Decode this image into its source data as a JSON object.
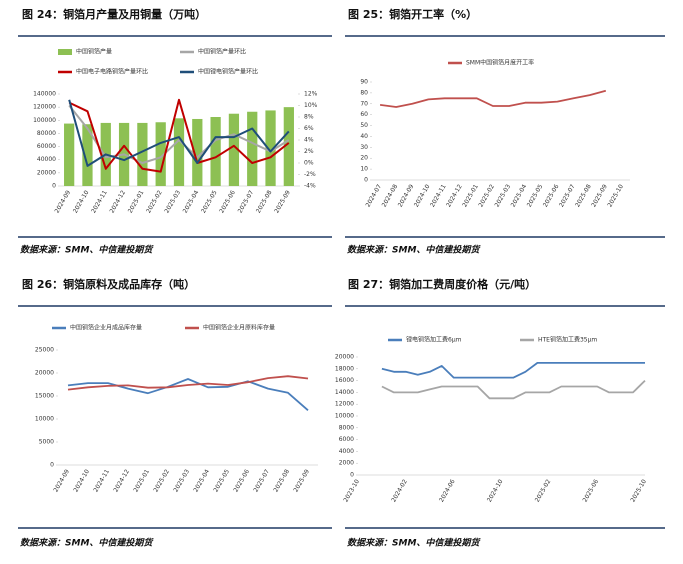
{
  "chart_data": [
    {
      "type": "bar",
      "title": "图 24：铜箔月产量及用铜量（万吨）",
      "source": "数据来源：SMM、中信建投期货",
      "categories": [
        "2024-09",
        "2024-10",
        "2024-11",
        "2024-12",
        "2025-01",
        "2025-02",
        "2025-03",
        "2025-04",
        "2025-05",
        "2025-06",
        "2025-07",
        "2025-08",
        "2025-09"
      ],
      "series": [
        {
          "name": "中国铜箔产量",
          "type": "bar",
          "color": "#8dc053",
          "values": [
            95000,
            94000,
            96000,
            96000,
            96000,
            97000,
            103000,
            102000,
            105000,
            110000,
            113000,
            115000,
            120000
          ]
        },
        {
          "name": "中国铜箔产量环比",
          "type": "line",
          "axis": "y2",
          "color": "#a6a6a6",
          "values": [
            10,
            6,
            1,
            1.5,
            0,
            1,
            4,
            1,
            4,
            5,
            3.5,
            2,
            4
          ]
        },
        {
          "name": "中国电子电路铜箔产量环比",
          "type": "line",
          "axis": "y2",
          "color": "#c00000",
          "values": [
            10.5,
            9,
            -1,
            3,
            -1,
            -1.5,
            11,
            0,
            1,
            3,
            0,
            1,
            3.5
          ]
        },
        {
          "name": "中国锂电铜箔产量环比",
          "type": "line",
          "axis": "y2",
          "color": "#1f4e79",
          "values": [
            11,
            -0.5,
            1.5,
            0.5,
            2,
            3.5,
            4.5,
            0,
            4.5,
            4.5,
            6,
            2,
            5.5
          ]
        }
      ],
      "ylim": [
        0,
        140000
      ],
      "yticks": [
        0,
        20000,
        40000,
        60000,
        80000,
        100000,
        120000,
        140000
      ],
      "y2lim": [
        -4,
        12
      ],
      "y2ticks": [
        {
          "value": -4,
          "label": "-4%"
        },
        {
          "value": -2,
          "label": "-2%"
        },
        {
          "value": 0,
          "label": "0%"
        },
        {
          "value": 2,
          "label": "2%"
        },
        {
          "value": 4,
          "label": "4%"
        },
        {
          "value": 6,
          "label": "6%"
        },
        {
          "value": 8,
          "label": "8%"
        },
        {
          "value": 10,
          "label": "10%"
        },
        {
          "value": 12,
          "label": "12%"
        }
      ]
    },
    {
      "type": "line",
      "title": "图 25：铜箔开工率（%）",
      "source": "数据来源：SMM、中信建投期货",
      "categories": [
        "2024-07",
        "2024-08",
        "2024-09",
        "2024-10",
        "2024-11",
        "2024-12",
        "2025-01",
        "2025-02",
        "2025-03",
        "2025-04",
        "2025-05",
        "2025-06",
        "2025-07",
        "2025-08",
        "2025-09",
        "2025-10"
      ],
      "series": [
        {
          "name": "SMM中国铜箔月度开工率",
          "color": "#c0504d",
          "values": [
            69,
            67,
            70,
            74,
            75,
            75,
            75,
            68,
            68,
            71,
            71,
            72,
            75,
            78,
            82,
            null
          ]
        }
      ],
      "ylim": [
        0,
        90
      ],
      "yticks": [
        0,
        10,
        20,
        30,
        40,
        50,
        60,
        70,
        80,
        90
      ]
    },
    {
      "type": "line",
      "title": "图 26：铜箔原料及成品库存（吨）",
      "source": "数据来源：SMM、中信建投期货",
      "categories": [
        "2024-09",
        "2024-10",
        "2024-11",
        "2024-12",
        "2025-01",
        "2025-02",
        "2025-03",
        "2025-04",
        "2025-05",
        "2025-06",
        "2025-07",
        "2025-08",
        "2025-09"
      ],
      "series": [
        {
          "name": "中国铜箔企业月成品库存量",
          "color": "#4a7ebb",
          "values": [
            17300,
            17800,
            17800,
            16600,
            15600,
            17000,
            18700,
            16900,
            17000,
            18200,
            16600,
            15700,
            11900
          ]
        },
        {
          "name": "中国铜箔企业月原料库存量",
          "color": "#c0504d",
          "values": [
            16400,
            16900,
            17200,
            17300,
            16800,
            16900,
            17400,
            17700,
            17400,
            18000,
            18900,
            19300,
            18800
          ]
        }
      ],
      "ylim": [
        0,
        25000
      ],
      "yticks": [
        0,
        5000,
        10000,
        15000,
        20000,
        25000
      ]
    },
    {
      "type": "line",
      "title": "图 27：铜箔加工费周度价格（元/吨）",
      "source": "数据来源：SMM、中信建投期货",
      "categories": [
        "2023-10",
        null,
        null,
        null,
        "2024-02",
        null,
        null,
        null,
        "2024-06",
        null,
        null,
        null,
        "2024-10",
        null,
        null,
        null,
        "2025-02",
        null,
        null,
        null,
        "2025-06",
        null,
        null,
        null,
        "2025-10"
      ],
      "series": [
        {
          "name": "锂电铜箔加工费6μm",
          "color": "#4a7ebb",
          "values": [
            null,
            null,
            18000,
            17500,
            17500,
            17000,
            17500,
            18500,
            16500,
            16500,
            16500,
            16500,
            16500,
            16500,
            17500,
            19000,
            19000,
            19000,
            19000,
            19000,
            19000,
            19000,
            19000,
            19000,
            19000
          ]
        },
        {
          "name": "HTE铜箔加工费35μm",
          "color": "#a6a6a6",
          "values": [
            null,
            null,
            15000,
            14000,
            14000,
            14000,
            14500,
            15000,
            15000,
            15000,
            15000,
            13000,
            13000,
            13000,
            14000,
            14000,
            14000,
            15000,
            15000,
            15000,
            15000,
            14000,
            14000,
            14000,
            16000
          ]
        }
      ],
      "ylim": [
        0,
        20000
      ],
      "yticks": [
        0,
        2000,
        4000,
        6000,
        8000,
        10000,
        12000,
        14000,
        16000,
        18000,
        20000
      ]
    }
  ]
}
